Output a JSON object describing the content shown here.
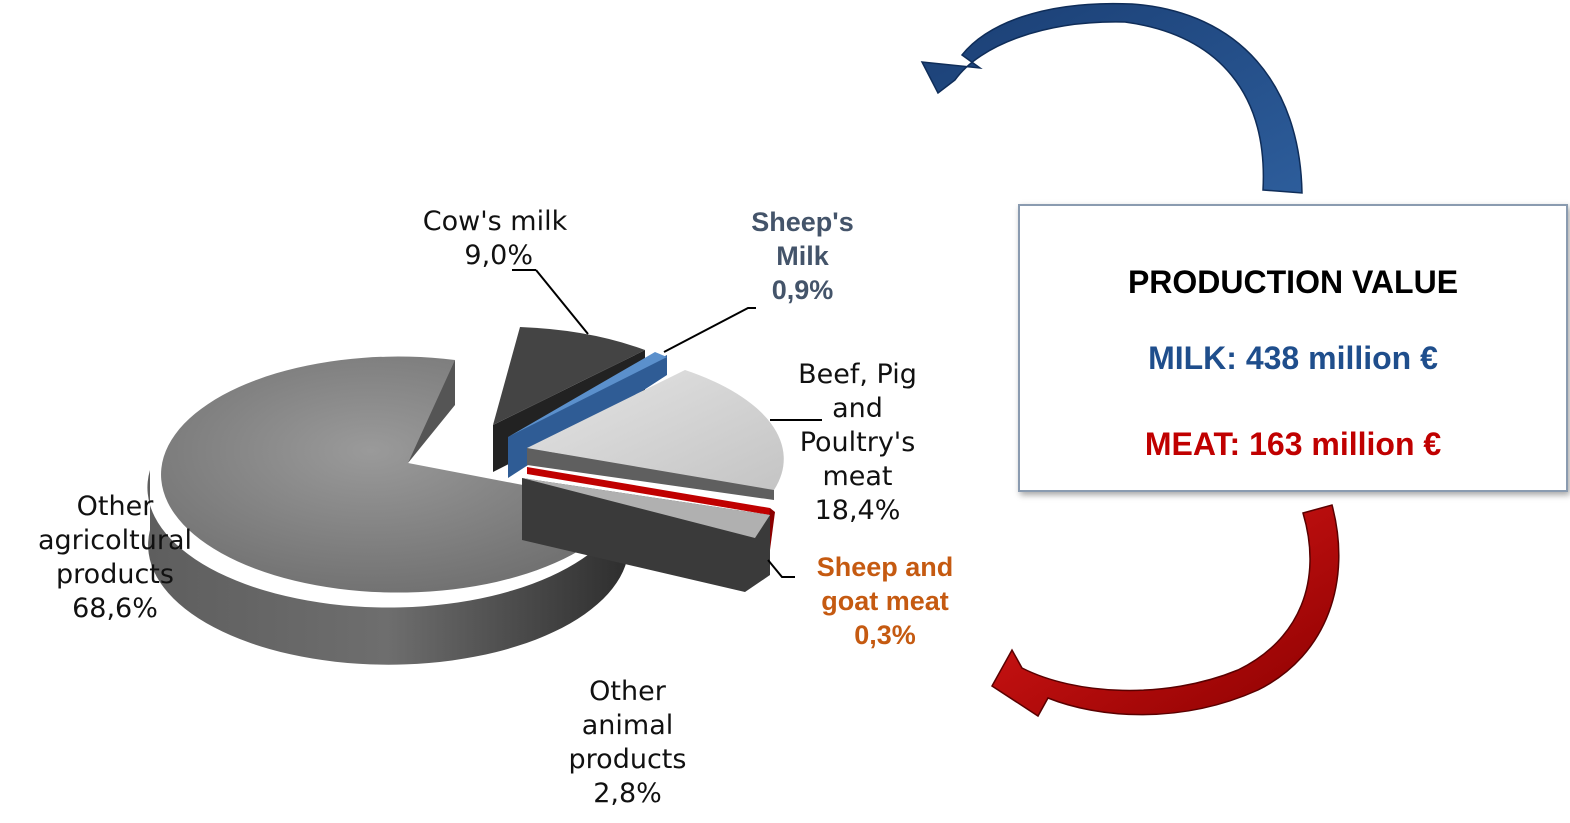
{
  "chart_data": {
    "type": "pie",
    "slices": [
      {
        "label_lines": [
          "Other",
          "agricoltural",
          "products"
        ],
        "value_text": "68,6%",
        "value": 68.6,
        "color": "#7d7d7d"
      },
      {
        "label_lines": [
          "Cow's milk"
        ],
        "value_text": "9,0%",
        "value": 9.0,
        "color": "#3c3c3c"
      },
      {
        "label_lines": [
          "Sheep's",
          "Milk"
        ],
        "value_text": "0,9%",
        "value": 0.9,
        "color": "#4e81bd"
      },
      {
        "label_lines": [
          "Beef, Pig",
          "and",
          "Poultry's",
          "meat"
        ],
        "value_text": "18,4%",
        "value": 18.4,
        "color": "#d6d6d6"
      },
      {
        "label_lines": [
          "Sheep and",
          "goat meat"
        ],
        "value_text": "0,3%",
        "value": 0.3,
        "color": "#c00000"
      },
      {
        "label_lines": [
          "Other",
          "animal",
          "products"
        ],
        "value_text": "2,8%",
        "value": 2.8,
        "color": "#bdbdbd"
      }
    ],
    "colors": {
      "sheep_milk_label": "#44546a",
      "sheep_goat_meat_label": "#c55a11",
      "milk": "#1f4e8c",
      "meat": "#c00000"
    }
  },
  "info_box": {
    "title": "PRODUCTION VALUE",
    "milk": "MILK: 438 million €",
    "meat": "MEAT: 163 million €"
  }
}
